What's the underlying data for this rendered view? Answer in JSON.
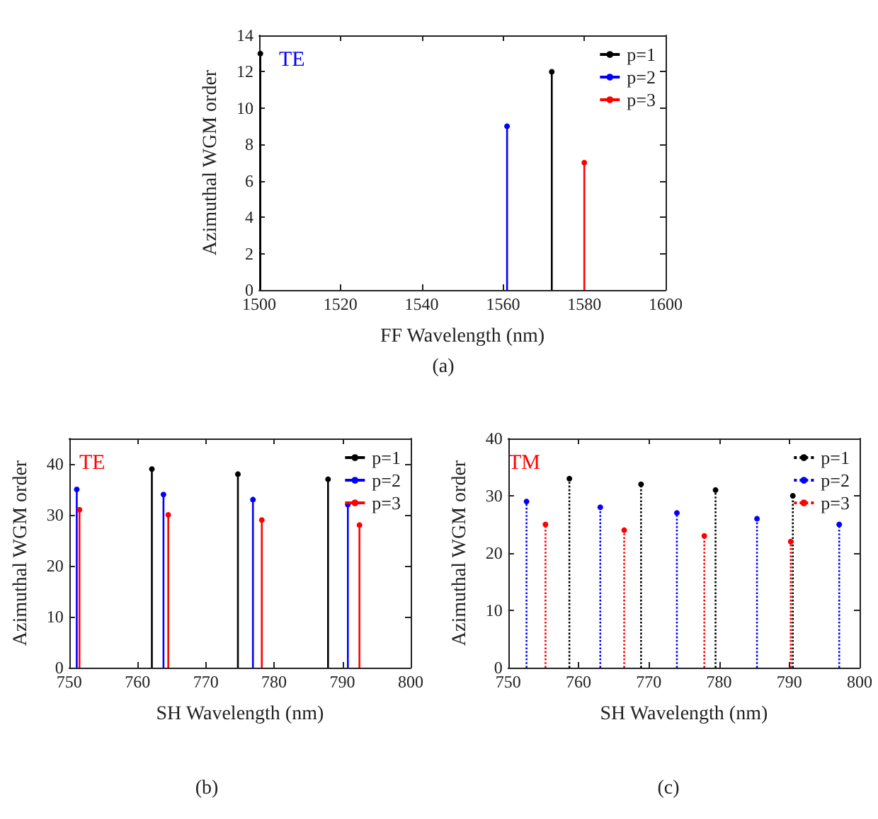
{
  "chart_data": [
    {
      "type": "lollipop",
      "xlabel": "FF Wavelength (nm)",
      "ylabel": "Azimuthal WGM order",
      "annotations": [
        "TE",
        "(a)"
      ],
      "xlim": [
        1500,
        1600
      ],
      "xticks": [
        1500,
        1520,
        1540,
        1560,
        1580,
        1600
      ],
      "ylim": [
        0,
        14
      ],
      "yticks": [
        0,
        2,
        4,
        6,
        8,
        10,
        12,
        14
      ],
      "grid": false,
      "legend": "top right",
      "marker": "circle",
      "line_style": "solid",
      "series": [
        {
          "name": "p=1",
          "color": "#000000",
          "x": [
            1500.3,
            1572
          ],
          "values": [
            13,
            12
          ]
        },
        {
          "name": "p=2",
          "color": "#0000ff",
          "x": [
            1561
          ],
          "values": [
            9
          ]
        },
        {
          "name": "p=3",
          "color": "#ff0000",
          "x": [
            1580
          ],
          "values": [
            7
          ]
        }
      ]
    },
    {
      "type": "lollipop",
      "xlabel": "SH Wavelength (nm)",
      "ylabel": "Azimuthal WGM order",
      "annotations": [
        "TE",
        "(b)"
      ],
      "xlim": [
        750,
        800
      ],
      "xticks": [
        750,
        760,
        770,
        780,
        790,
        800
      ],
      "ylim": [
        0,
        45
      ],
      "yticks": [
        0,
        10,
        20,
        30,
        40
      ],
      "grid": false,
      "legend": "top right",
      "marker": "circle",
      "line_style": "solid",
      "series": [
        {
          "name": "p=1",
          "color": "#000000",
          "x": [
            762.1,
            774.7,
            787.9
          ],
          "values": [
            39,
            38,
            37
          ]
        },
        {
          "name": "p=2",
          "color": "#0000ff",
          "x": [
            751.1,
            763.8,
            776.9,
            790.8
          ],
          "values": [
            35,
            34,
            33,
            32
          ]
        },
        {
          "name": "p=3",
          "color": "#ff0000",
          "x": [
            751.5,
            764.5,
            778.2,
            792.5
          ],
          "values": [
            31,
            30,
            29,
            28
          ]
        }
      ]
    },
    {
      "type": "lollipop",
      "xlabel": "SH Wavelength (nm)",
      "ylabel": "Azimuthal WGM order",
      "annotations": [
        "TM",
        "(c)"
      ],
      "xlim": [
        750,
        800
      ],
      "xticks": [
        750,
        760,
        770,
        780,
        790,
        800
      ],
      "ylim": [
        0,
        40
      ],
      "yticks": [
        0,
        10,
        20,
        30,
        40
      ],
      "grid": false,
      "legend": "top right",
      "marker": "circle",
      "line_style": "dotted",
      "series": [
        {
          "name": "p=1",
          "color": "#000000",
          "x": [
            758.7,
            768.9,
            779.5,
            790.5
          ],
          "values": [
            33,
            32,
            31,
            30
          ]
        },
        {
          "name": "p=2",
          "color": "#0000ff",
          "x": [
            752.6,
            763.1,
            774.0,
            785.4,
            797.1
          ],
          "values": [
            29,
            28,
            27,
            26,
            25
          ]
        },
        {
          "name": "p=3",
          "color": "#ff0000",
          "x": [
            755.3,
            766.5,
            777.9,
            790.2
          ],
          "values": [
            25,
            24,
            23,
            22
          ]
        }
      ]
    }
  ]
}
